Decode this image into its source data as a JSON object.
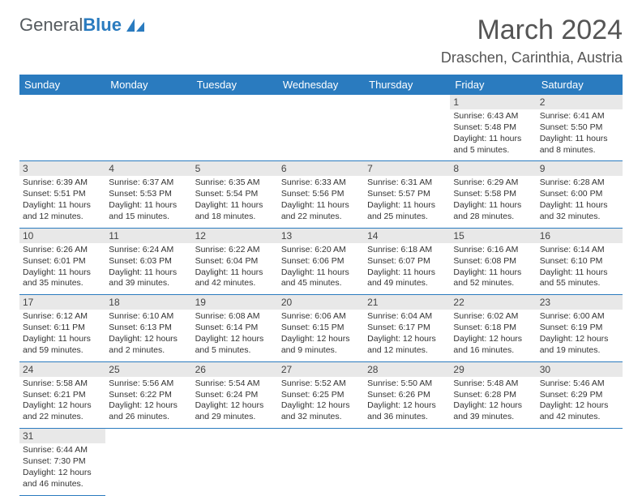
{
  "logo": {
    "text1": "General",
    "text2": "Blue"
  },
  "title": "March 2024",
  "location": "Draschen, Carinthia, Austria",
  "weekdays": [
    "Sunday",
    "Monday",
    "Tuesday",
    "Wednesday",
    "Thursday",
    "Friday",
    "Saturday"
  ],
  "colors": {
    "brand": "#2a7bbf",
    "headerBg": "#2a7bbf",
    "dayStripe": "#e8e8e8"
  },
  "days": {
    "1": {
      "sunrise": "6:43 AM",
      "sunset": "5:48 PM",
      "dayH": 11,
      "dayM": 5
    },
    "2": {
      "sunrise": "6:41 AM",
      "sunset": "5:50 PM",
      "dayH": 11,
      "dayM": 8
    },
    "3": {
      "sunrise": "6:39 AM",
      "sunset": "5:51 PM",
      "dayH": 11,
      "dayM": 12
    },
    "4": {
      "sunrise": "6:37 AM",
      "sunset": "5:53 PM",
      "dayH": 11,
      "dayM": 15
    },
    "5": {
      "sunrise": "6:35 AM",
      "sunset": "5:54 PM",
      "dayH": 11,
      "dayM": 18
    },
    "6": {
      "sunrise": "6:33 AM",
      "sunset": "5:56 PM",
      "dayH": 11,
      "dayM": 22
    },
    "7": {
      "sunrise": "6:31 AM",
      "sunset": "5:57 PM",
      "dayH": 11,
      "dayM": 25
    },
    "8": {
      "sunrise": "6:29 AM",
      "sunset": "5:58 PM",
      "dayH": 11,
      "dayM": 28
    },
    "9": {
      "sunrise": "6:28 AM",
      "sunset": "6:00 PM",
      "dayH": 11,
      "dayM": 32
    },
    "10": {
      "sunrise": "6:26 AM",
      "sunset": "6:01 PM",
      "dayH": 11,
      "dayM": 35
    },
    "11": {
      "sunrise": "6:24 AM",
      "sunset": "6:03 PM",
      "dayH": 11,
      "dayM": 39
    },
    "12": {
      "sunrise": "6:22 AM",
      "sunset": "6:04 PM",
      "dayH": 11,
      "dayM": 42
    },
    "13": {
      "sunrise": "6:20 AM",
      "sunset": "6:06 PM",
      "dayH": 11,
      "dayM": 45
    },
    "14": {
      "sunrise": "6:18 AM",
      "sunset": "6:07 PM",
      "dayH": 11,
      "dayM": 49
    },
    "15": {
      "sunrise": "6:16 AM",
      "sunset": "6:08 PM",
      "dayH": 11,
      "dayM": 52
    },
    "16": {
      "sunrise": "6:14 AM",
      "sunset": "6:10 PM",
      "dayH": 11,
      "dayM": 55
    },
    "17": {
      "sunrise": "6:12 AM",
      "sunset": "6:11 PM",
      "dayH": 11,
      "dayM": 59
    },
    "18": {
      "sunrise": "6:10 AM",
      "sunset": "6:13 PM",
      "dayH": 12,
      "dayM": 2
    },
    "19": {
      "sunrise": "6:08 AM",
      "sunset": "6:14 PM",
      "dayH": 12,
      "dayM": 5
    },
    "20": {
      "sunrise": "6:06 AM",
      "sunset": "6:15 PM",
      "dayH": 12,
      "dayM": 9
    },
    "21": {
      "sunrise": "6:04 AM",
      "sunset": "6:17 PM",
      "dayH": 12,
      "dayM": 12
    },
    "22": {
      "sunrise": "6:02 AM",
      "sunset": "6:18 PM",
      "dayH": 12,
      "dayM": 16
    },
    "23": {
      "sunrise": "6:00 AM",
      "sunset": "6:19 PM",
      "dayH": 12,
      "dayM": 19
    },
    "24": {
      "sunrise": "5:58 AM",
      "sunset": "6:21 PM",
      "dayH": 12,
      "dayM": 22
    },
    "25": {
      "sunrise": "5:56 AM",
      "sunset": "6:22 PM",
      "dayH": 12,
      "dayM": 26
    },
    "26": {
      "sunrise": "5:54 AM",
      "sunset": "6:24 PM",
      "dayH": 12,
      "dayM": 29
    },
    "27": {
      "sunrise": "5:52 AM",
      "sunset": "6:25 PM",
      "dayH": 12,
      "dayM": 32
    },
    "28": {
      "sunrise": "5:50 AM",
      "sunset": "6:26 PM",
      "dayH": 12,
      "dayM": 36
    },
    "29": {
      "sunrise": "5:48 AM",
      "sunset": "6:28 PM",
      "dayH": 12,
      "dayM": 39
    },
    "30": {
      "sunrise": "5:46 AM",
      "sunset": "6:29 PM",
      "dayH": 12,
      "dayM": 42
    },
    "31": {
      "sunrise": "6:44 AM",
      "sunset": "7:30 PM",
      "dayH": 12,
      "dayM": 46
    }
  },
  "labels": {
    "sunrise": "Sunrise: ",
    "sunset": "Sunset: ",
    "daylight": "Daylight: ",
    "hours": " hours",
    "and": "and ",
    "minutes": " minutes."
  },
  "layout": {
    "startWeekday": 5,
    "numDays": 31
  }
}
